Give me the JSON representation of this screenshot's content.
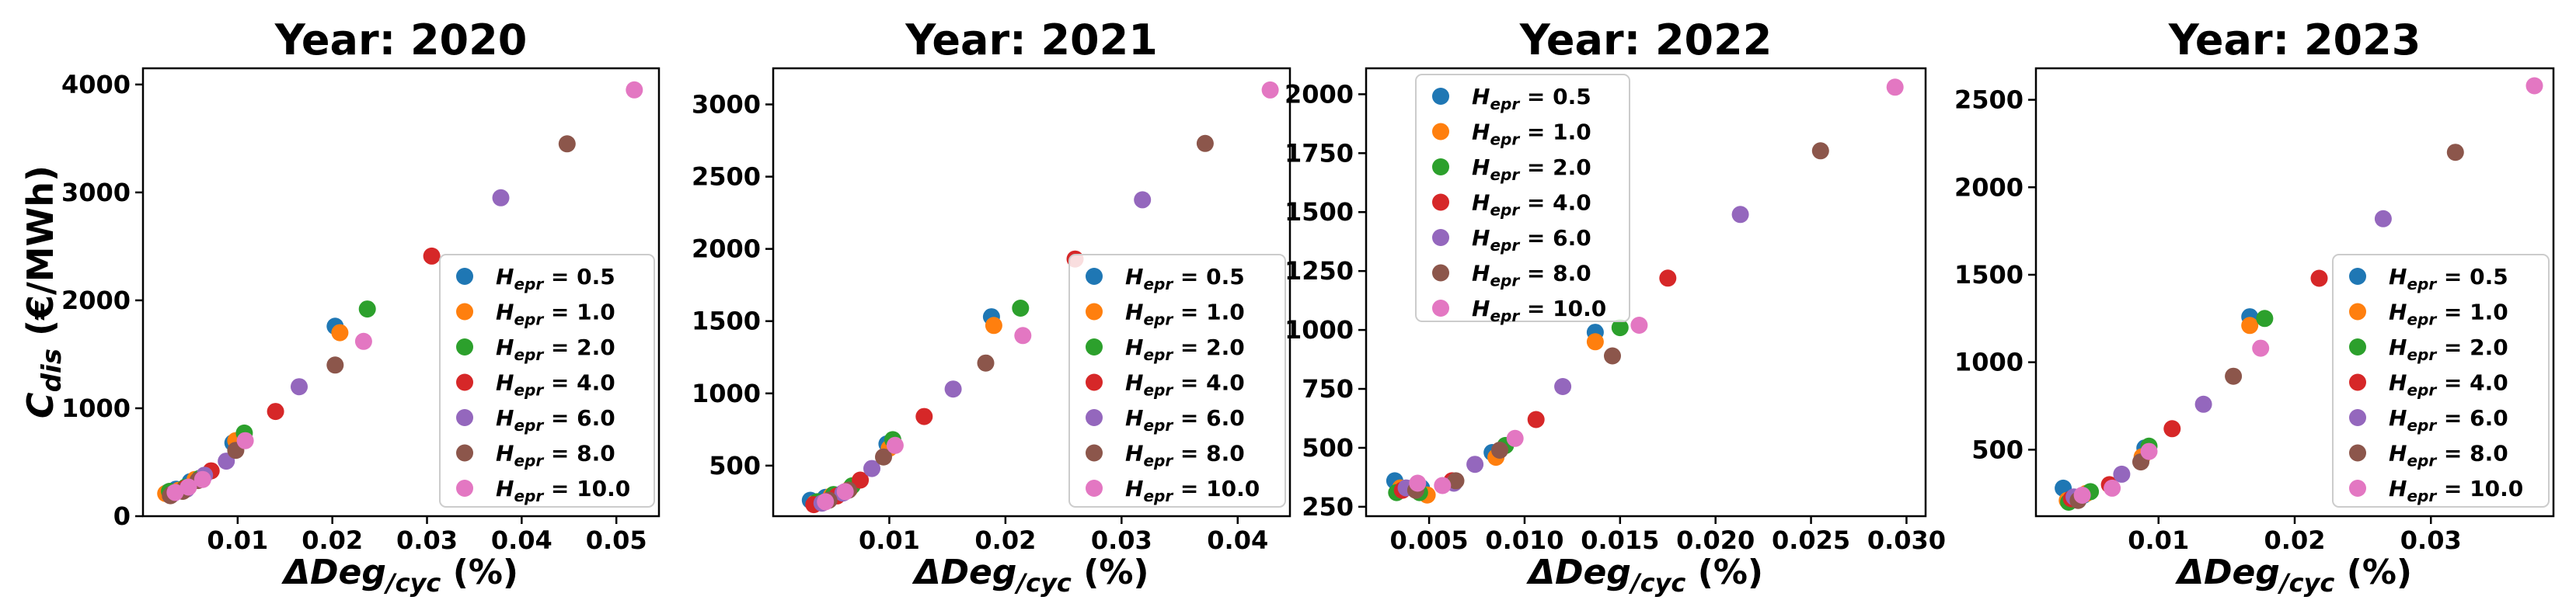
{
  "figure": {
    "ylabel": "C",
    "ylabel_sub": "dis",
    "ylabel_unit": " (€/MWh)",
    "xlabel": "ΔDeg",
    "xlabel_sub": "/cyc",
    "xlabel_unit": " (%)"
  },
  "legend_entries": [
    {
      "symbol": "H",
      "sub": "epr",
      "text": " = 0.5",
      "color": "#1f77b4"
    },
    {
      "symbol": "H",
      "sub": "epr",
      "text": " = 1.0",
      "color": "#ff7f0e"
    },
    {
      "symbol": "H",
      "sub": "epr",
      "text": " = 2.0",
      "color": "#2ca02c"
    },
    {
      "symbol": "H",
      "sub": "epr",
      "text": " = 4.0",
      "color": "#d62728"
    },
    {
      "symbol": "H",
      "sub": "epr",
      "text": " = 6.0",
      "color": "#9467bd"
    },
    {
      "symbol": "H",
      "sub": "epr",
      "text": " = 8.0",
      "color": "#8c564b"
    },
    {
      "symbol": "H",
      "sub": "epr",
      "text": " = 10.0",
      "color": "#e377c2"
    }
  ],
  "chart_data": [
    {
      "type": "scatter",
      "title": "Year: 2020",
      "xlabel": "ΔDeg/cyc (%)",
      "ylabel": "Cdis (€/MWh)",
      "xlim": [
        0.0,
        0.0545
      ],
      "ylim": [
        0,
        4150
      ],
      "xticks": [
        0.01,
        0.02,
        0.03,
        0.04,
        0.05
      ],
      "xtick_labels": [
        "0.01",
        "0.02",
        "0.03",
        "0.04",
        "0.05"
      ],
      "yticks": [
        0,
        1000,
        2000,
        3000,
        4000
      ],
      "ytick_labels": [
        "0",
        "1000",
        "2000",
        "3000",
        "4000"
      ],
      "legend": "lower right",
      "series": [
        {
          "name": "Hepr = 0.5",
          "points": [
            [
              0.0026,
              220
            ],
            [
              0.0035,
              250
            ],
            [
              0.005,
              320
            ],
            [
              0.0095,
              680
            ],
            [
              0.0203,
              1760
            ]
          ]
        },
        {
          "name": "Hepr = 1.0",
          "points": [
            [
              0.0024,
              210
            ],
            [
              0.0038,
              240
            ],
            [
              0.0055,
              340
            ],
            [
              0.0098,
              700
            ],
            [
              0.0208,
              1700
            ]
          ]
        },
        {
          "name": "Hepr = 2.0",
          "points": [
            [
              0.0028,
              230
            ],
            [
              0.0045,
              270
            ],
            [
              0.006,
              350
            ],
            [
              0.0107,
              770
            ],
            [
              0.0237,
              1920
            ]
          ]
        },
        {
          "name": "Hepr = 4.0",
          "points": [
            [
              0.003,
              200
            ],
            [
              0.0045,
              260
            ],
            [
              0.0072,
              420
            ],
            [
              0.014,
              970
            ],
            [
              0.0305,
              2410
            ]
          ]
        },
        {
          "name": "Hepr = 6.0",
          "points": [
            [
              0.0032,
              210
            ],
            [
              0.0046,
              250
            ],
            [
              0.0065,
              380
            ],
            [
              0.0088,
              510
            ],
            [
              0.0165,
              1200
            ],
            [
              0.0378,
              2950
            ]
          ]
        },
        {
          "name": "Hepr = 8.0",
          "points": [
            [
              0.0029,
              190
            ],
            [
              0.0042,
              230
            ],
            [
              0.0058,
              330
            ],
            [
              0.0098,
              610
            ],
            [
              0.0203,
              1400
            ],
            [
              0.0448,
              3450
            ]
          ]
        },
        {
          "name": "Hepr = 10.0",
          "points": [
            [
              0.0034,
              220
            ],
            [
              0.0048,
              270
            ],
            [
              0.0063,
              340
            ],
            [
              0.0108,
              700
            ],
            [
              0.0233,
              1620
            ],
            [
              0.0519,
              3950
            ]
          ]
        }
      ]
    },
    {
      "type": "scatter",
      "title": "Year: 2021",
      "xlabel": "ΔDeg/cyc (%)",
      "ylabel": "",
      "xlim": [
        0.0,
        0.0445
      ],
      "ylim": [
        150,
        3250
      ],
      "xticks": [
        0.01,
        0.02,
        0.03,
        0.04
      ],
      "xtick_labels": [
        "0.01",
        "0.02",
        "0.03",
        "0.04"
      ],
      "yticks": [
        500,
        1000,
        1500,
        2000,
        2500,
        3000
      ],
      "ytick_labels": [
        "500",
        "1000",
        "1500",
        "2000",
        "2500",
        "3000"
      ],
      "legend": "lower right",
      "series": [
        {
          "name": "Hepr = 0.5",
          "points": [
            [
              0.0032,
              260
            ],
            [
              0.0045,
              280
            ],
            [
              0.0062,
              320
            ],
            [
              0.0098,
              650
            ],
            [
              0.0188,
              1530
            ]
          ]
        },
        {
          "name": "Hepr = 1.0",
          "points": [
            [
              0.0036,
              240
            ],
            [
              0.005,
              290
            ],
            [
              0.0066,
              340
            ],
            [
              0.01,
              620
            ],
            [
              0.019,
              1470
            ]
          ]
        },
        {
          "name": "Hepr = 2.0",
          "points": [
            [
              0.0038,
              250
            ],
            [
              0.0052,
              300
            ],
            [
              0.0068,
              360
            ],
            [
              0.0103,
              680
            ],
            [
              0.0213,
              1590
            ]
          ]
        },
        {
          "name": "Hepr = 4.0",
          "points": [
            [
              0.0035,
              230
            ],
            [
              0.0055,
              290
            ],
            [
              0.0075,
              400
            ],
            [
              0.013,
              840
            ],
            [
              0.026,
              1930
            ]
          ]
        },
        {
          "name": "Hepr = 6.0",
          "points": [
            [
              0.0042,
              240
            ],
            [
              0.006,
              310
            ],
            [
              0.0085,
              480
            ],
            [
              0.0155,
              1030
            ],
            [
              0.0318,
              2340
            ]
          ]
        },
        {
          "name": "Hepr = 8.0",
          "points": [
            [
              0.0048,
              260
            ],
            [
              0.0065,
              330
            ],
            [
              0.0095,
              560
            ],
            [
              0.0183,
              1210
            ],
            [
              0.0372,
              2730
            ]
          ]
        },
        {
          "name": "Hepr = 10.0",
          "points": [
            [
              0.0045,
              250
            ],
            [
              0.0062,
              320
            ],
            [
              0.0105,
              640
            ],
            [
              0.0215,
              1400
            ],
            [
              0.0428,
              3100
            ]
          ]
        }
      ]
    },
    {
      "type": "scatter",
      "title": "Year: 2022",
      "xlabel": "ΔDeg/cyc (%)",
      "ylabel": "",
      "xlim": [
        0.0017,
        0.031
      ],
      "ylim": [
        210,
        2110
      ],
      "xticks": [
        0.005,
        0.01,
        0.015,
        0.02,
        0.025,
        0.03
      ],
      "xtick_labels": [
        "0.005",
        "0.010",
        "0.015",
        "0.020",
        "0.025",
        "0.030"
      ],
      "yticks": [
        250,
        500,
        750,
        1000,
        1250,
        1500,
        1750,
        2000
      ],
      "ytick_labels": [
        "250",
        "500",
        "750",
        "1000",
        "1250",
        "1500",
        "1750",
        "2000"
      ],
      "legend": "upper left",
      "series": [
        {
          "name": "Hepr = 0.5",
          "points": [
            [
              0.0032,
              360
            ],
            [
              0.0046,
              330
            ],
            [
              0.0083,
              480
            ],
            [
              0.0137,
              990
            ]
          ]
        },
        {
          "name": "Hepr = 1.0",
          "points": [
            [
              0.0035,
              330
            ],
            [
              0.0049,
              300
            ],
            [
              0.0085,
              460
            ],
            [
              0.0137,
              950
            ]
          ]
        },
        {
          "name": "Hepr = 2.0",
          "points": [
            [
              0.0033,
              310
            ],
            [
              0.0045,
              310
            ],
            [
              0.009,
              510
            ],
            [
              0.015,
              1010
            ]
          ]
        },
        {
          "name": "Hepr = 4.0",
          "points": [
            [
              0.0036,
              320
            ],
            [
              0.0062,
              360
            ],
            [
              0.0106,
              620
            ],
            [
              0.0175,
              1220
            ]
          ]
        },
        {
          "name": "Hepr = 6.0",
          "points": [
            [
              0.0038,
              330
            ],
            [
              0.0063,
              350
            ],
            [
              0.0074,
              430
            ],
            [
              0.012,
              760
            ],
            [
              0.0213,
              1490
            ]
          ]
        },
        {
          "name": "Hepr = 8.0",
          "points": [
            [
              0.0043,
              320
            ],
            [
              0.0064,
              360
            ],
            [
              0.0087,
              490
            ],
            [
              0.0146,
              890
            ],
            [
              0.0255,
              1760
            ]
          ]
        },
        {
          "name": "Hepr = 10.0",
          "points": [
            [
              0.0044,
              350
            ],
            [
              0.0057,
              340
            ],
            [
              0.0095,
              540
            ],
            [
              0.016,
              1020
            ],
            [
              0.0294,
              2030
            ]
          ]
        }
      ]
    },
    {
      "type": "scatter",
      "title": "Year: 2023",
      "xlabel": "ΔDeg/cyc (%)",
      "ylabel": "",
      "xlim": [
        0.001,
        0.039
      ],
      "ylim": [
        120,
        2680
      ],
      "xticks": [
        0.01,
        0.02,
        0.03
      ],
      "xtick_labels": [
        "0.01",
        "0.02",
        "0.03"
      ],
      "yticks": [
        500,
        1000,
        1500,
        2000,
        2500
      ],
      "ytick_labels": [
        "500",
        "1000",
        "1500",
        "2000",
        "2500"
      ],
      "legend": "lower right",
      "series": [
        {
          "name": "Hepr = 0.5",
          "points": [
            [
              0.003,
              280
            ],
            [
              0.0045,
              240
            ],
            [
              0.009,
              510
            ],
            [
              0.0167,
              1260
            ]
          ]
        },
        {
          "name": "Hepr = 1.0",
          "points": [
            [
              0.0033,
              210
            ],
            [
              0.0047,
              250
            ],
            [
              0.0088,
              460
            ],
            [
              0.0167,
              1210
            ]
          ]
        },
        {
          "name": "Hepr = 2.0",
          "points": [
            [
              0.0034,
              200
            ],
            [
              0.005,
              260
            ],
            [
              0.0093,
              520
            ],
            [
              0.0178,
              1250
            ]
          ]
        },
        {
          "name": "Hepr = 4.0",
          "points": [
            [
              0.0036,
              220
            ],
            [
              0.0064,
              300
            ],
            [
              0.011,
              620
            ],
            [
              0.0218,
              1480
            ]
          ]
        },
        {
          "name": "Hepr = 6.0",
          "points": [
            [
              0.0038,
              230
            ],
            [
              0.0073,
              360
            ],
            [
              0.0133,
              760
            ],
            [
              0.0265,
              1820
            ]
          ]
        },
        {
          "name": "Hepr = 8.0",
          "points": [
            [
              0.0041,
              210
            ],
            [
              0.0087,
              430
            ],
            [
              0.0155,
              920
            ],
            [
              0.0318,
              2200
            ]
          ]
        },
        {
          "name": "Hepr = 10.0",
          "points": [
            [
              0.0044,
              240
            ],
            [
              0.0066,
              280
            ],
            [
              0.0093,
              490
            ],
            [
              0.0175,
              1080
            ],
            [
              0.0376,
              2580
            ]
          ]
        }
      ]
    }
  ]
}
